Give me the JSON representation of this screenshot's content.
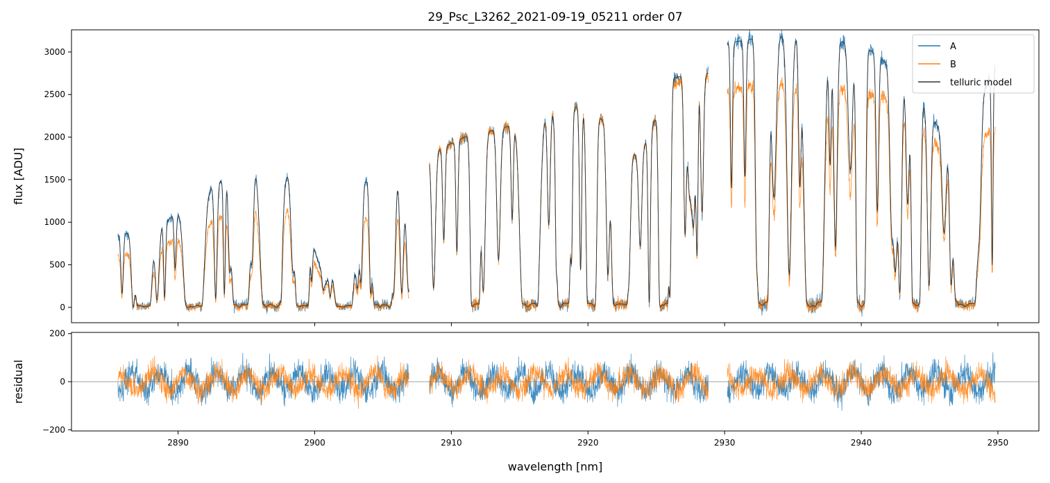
{
  "chart_data": [
    {
      "panel": "main",
      "type": "line",
      "title": "29_Psc_L3262_2021-09-19_05211  order 07",
      "xlabel": "",
      "ylabel": "flux [ADU]",
      "xlim": [
        2882.2,
        2953.0
      ],
      "ylim": [
        -180,
        3260
      ],
      "yticks": [
        0,
        500,
        1000,
        1500,
        2000,
        2500,
        3000
      ],
      "xticks": [
        2890,
        2900,
        2910,
        2920,
        2930,
        2940,
        2950
      ],
      "legend": {
        "placement": "top-right"
      },
      "colors": {
        "A": "#1f77b4",
        "B": "#ff7f0e",
        "telluric model": "#333333"
      },
      "segments": [
        {
          "x_range": [
            2885.6,
            2906.9
          ],
          "continuum_A": [
            850,
            950,
            1330,
            1650,
            1700,
            280,
            1550,
            1600
          ],
          "continuum_B": [
            600,
            700,
            950,
            1200,
            1250,
            240,
            1100,
            1200
          ]
        },
        {
          "x_range": [
            2908.4,
            2928.8
          ],
          "continuum_A": [
            1800,
            2000,
            2100,
            2200,
            2400,
            2200,
            1750,
            2700,
            2750
          ],
          "continuum_B": [
            1800,
            2000,
            2100,
            2200,
            2400,
            2200,
            1750,
            2650,
            2700
          ]
        },
        {
          "x_range": [
            2930.2,
            2949.8
          ],
          "continuum_A": [
            3100,
            3200,
            3150,
            3100,
            2700,
            1900,
            2800
          ],
          "continuum_B": [
            2550,
            2650,
            2600,
            2550,
            2400,
            1700,
            2100
          ]
        }
      ],
      "series": [
        {
          "name": "A"
        },
        {
          "name": "B"
        },
        {
          "name": "telluric model"
        }
      ]
    },
    {
      "panel": "residual",
      "type": "line",
      "xlabel": "wavelength [nm]",
      "ylabel": "residual",
      "xlim": [
        2882.2,
        2953.0
      ],
      "ylim": [
        -205,
        205
      ],
      "yticks": [
        -200,
        0,
        200
      ],
      "xticks": [
        2890,
        2900,
        2910,
        2920,
        2930,
        2940,
        2950
      ],
      "zero_line": 0,
      "series": [
        {
          "name": "A"
        },
        {
          "name": "B"
        }
      ]
    }
  ]
}
